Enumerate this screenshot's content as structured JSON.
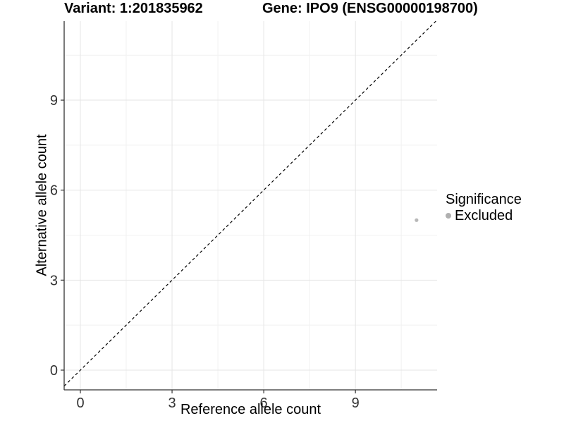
{
  "header": {
    "title_left": "Variant: 1:201835962",
    "title_right": "Gene: IPO9 (ENSG00000198700)"
  },
  "chart_data": {
    "type": "scatter",
    "title_left": "Variant: 1:201835962",
    "title_right": "Gene: IPO9 (ENSG00000198700)",
    "xlabel": "Reference allele count",
    "ylabel": "Alternative allele count",
    "x_ticks": [
      0,
      3,
      6,
      9
    ],
    "y_ticks": [
      0,
      3,
      6,
      9
    ],
    "x_minor_ticks": [
      1.5,
      4.5,
      7.5,
      10.5
    ],
    "y_minor_ticks": [
      1.5,
      4.5,
      7.5,
      10.5
    ],
    "xlim": [
      -0.53,
      11.67
    ],
    "ylim": [
      -0.66,
      11.63
    ],
    "grid": true,
    "legend_position": "right",
    "series": [
      {
        "name": "Excluded",
        "color": "#b8b8b8",
        "points": [
          {
            "x": 11,
            "y": 5
          }
        ]
      }
    ],
    "abline": {
      "slope": 1,
      "intercept": 0,
      "style": "dashed",
      "color": "#000000"
    }
  },
  "legend": {
    "title": "Significance",
    "items": [
      {
        "label": "Excluded",
        "color": "#b0b0b0"
      }
    ]
  },
  "colors": {
    "background": "#ffffff",
    "axis_line": "#333333",
    "tick_label": "#333333",
    "grid_major": "#e5e5e5",
    "grid_minor": "#f1f1f1",
    "point": "#b8b8b8"
  }
}
